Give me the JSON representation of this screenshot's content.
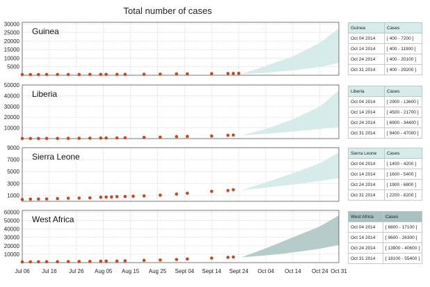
{
  "chart_data": {
    "type": "area",
    "title": "Total number of cases",
    "x_ticks": [
      "Jul 06",
      "Jul 16",
      "Jul 26",
      "Aug 05",
      "Aug 15",
      "Aug 25",
      "Sept 04",
      "Sept 14",
      "Sept 24",
      "Oct 04",
      "Oct 14",
      "Oct 24",
      "Oct 31"
    ],
    "panels": [
      {
        "name": "Guinea",
        "band_color": "#d6ecea",
        "header_color": "#d6ecea",
        "y_ticks": [
          5000,
          10000,
          15000,
          20000,
          25000,
          30000
        ],
        "y_tick_labels": [
          "5000",
          "10000",
          "15000",
          "20000",
          "25000",
          "30000"
        ],
        "ylim": [
          0,
          31000
        ],
        "projection": {
          "x": [
            "Sept 25",
            "Oct 04",
            "Oct 14",
            "Oct 24",
            "Oct 31"
          ],
          "low": [
            650,
            1500,
            2800,
            4800,
            7200
          ],
          "high": [
            650,
            5500,
            11000,
            19000,
            27500
          ]
        },
        "points": {
          "x": [
            "Jul 06",
            "Jul 09",
            "Jul 12",
            "Jul 15",
            "Jul 19",
            "Jul 23",
            "Jul 27",
            "Jul 31",
            "Aug 04",
            "Aug 06",
            "Aug 10",
            "Aug 13",
            "Aug 20",
            "Aug 26",
            "Sept 01",
            "Sept 05",
            "Sept 14",
            "Sept 20",
            "Sept 22",
            "Sept 24"
          ],
          "y": [
            410,
            415,
            427,
            430,
            438,
            445,
            460,
            472,
            485,
            495,
            506,
            519,
            579,
            648,
            771,
            812,
            936,
            1022,
            1074,
            1157
          ]
        },
        "table": {
          "header": [
            "Guinea",
            "Cases"
          ],
          "rows": [
            [
              "Oct 04 2014",
              "[ 400 - 7200 ]"
            ],
            [
              "Oct 14 2014",
              "[ 400 - 11900 ]"
            ],
            [
              "Oct 24 2014",
              "[ 400 - 20100 ]"
            ],
            [
              "Oct 31 2014",
              "[ 400 - 29200 ]"
            ]
          ]
        }
      },
      {
        "name": "Liberia",
        "band_color": "#d6ecea",
        "header_color": "#d6ecea",
        "y_ticks": [
          10000,
          20000,
          30000,
          40000,
          50000
        ],
        "y_tick_labels": [
          "10000",
          "20000",
          "30000",
          "40000",
          "50000"
        ],
        "ylim": [
          0,
          50000
        ],
        "projection": {
          "x": [
            "Sept 25",
            "Oct 04",
            "Oct 14",
            "Oct 24",
            "Oct 31"
          ],
          "low": [
            3000,
            4500,
            6500,
            9000,
            11000
          ],
          "high": [
            3000,
            9000,
            18000,
            30000,
            45000
          ]
        },
        "points": {
          "x": [
            "Jul 06",
            "Jul 09",
            "Jul 12",
            "Jul 15",
            "Jul 19",
            "Jul 23",
            "Jul 27",
            "Jul 31",
            "Aug 04",
            "Aug 06",
            "Aug 10",
            "Aug 13",
            "Aug 20",
            "Aug 26",
            "Sept 01",
            "Sept 05",
            "Sept 14",
            "Sept 20",
            "Sept 22"
          ],
          "y": [
            100,
            115,
            131,
            172,
            224,
            249,
            329,
            391,
            516,
            554,
            670,
            786,
            1082,
            1378,
            1871,
            2046,
            2407,
            3022,
            3280
          ]
        },
        "table": {
          "header": [
            "Liberia",
            "Cases"
          ],
          "rows": [
            [
              "Oct 04 2014",
              "[ 2900 - 13600 ]"
            ],
            [
              "Oct 14 2014",
              "[ 4500 - 21700 ]"
            ],
            [
              "Oct 24 2014",
              "[ 6900 - 34400 ]"
            ],
            [
              "Oct 31 2014",
              "[ 9400 - 47000 ]"
            ]
          ]
        }
      },
      {
        "name": "Sierra Leone",
        "band_color": "#d6ecea",
        "header_color": "#d6ecea",
        "y_ticks": [
          1000,
          3000,
          5000,
          7000,
          9000
        ],
        "y_tick_labels": [
          "1000",
          "3000",
          "5000",
          "7000",
          "9000"
        ],
        "ylim": [
          0,
          9000
        ],
        "projection": {
          "x": [
            "Sept 25",
            "Oct 04",
            "Oct 14",
            "Oct 24",
            "Oct 31"
          ],
          "low": [
            1850,
            2300,
            2800,
            3400,
            3900
          ],
          "high": [
            1850,
            3200,
            4700,
            6400,
            8200
          ]
        },
        "points": {
          "x": [
            "Jul 06",
            "Jul 09",
            "Jul 12",
            "Jul 15",
            "Jul 19",
            "Jul 23",
            "Jul 27",
            "Jul 31",
            "Aug 04",
            "Aug 06",
            "Aug 08",
            "Aug 10",
            "Aug 13",
            "Aug 16",
            "Aug 20",
            "Aug 26",
            "Sept 01",
            "Sept 05",
            "Sept 14",
            "Sept 20",
            "Sept 22"
          ],
          "y": [
            305,
            368,
            386,
            397,
            454,
            525,
            533,
            574,
            691,
            717,
            730,
            783,
            810,
            848,
            907,
            1026,
            1216,
            1361,
            1673,
            1813,
            1940
          ]
        },
        "table": {
          "header": [
            "Sierra Leone",
            "Cases"
          ],
          "rows": [
            [
              "Oct 04 2014",
              "[ 1400 - 4200 ]"
            ],
            [
              "Oct 14 2014",
              "[ 1600 - 5400 ]"
            ],
            [
              "Oct 24 2014",
              "[ 1900 - 6800 ]"
            ],
            [
              "Oct 31 2014",
              "[ 2200 - 8200 ]"
            ]
          ]
        }
      },
      {
        "name": "West Africa",
        "band_color": "#b6cccb",
        "header_color": "#a9c1c0",
        "y_ticks": [
          10000,
          20000,
          30000,
          40000,
          50000,
          60000
        ],
        "y_tick_labels": [
          "10000",
          "20000",
          "30000",
          "40000",
          "50000",
          "60000"
        ],
        "ylim": [
          0,
          62000
        ],
        "projection": {
          "x": [
            "Sept 25",
            "Oct 04",
            "Oct 14",
            "Oct 24",
            "Oct 31"
          ],
          "low": [
            6300,
            8500,
            12000,
            16500,
            21000
          ],
          "high": [
            6300,
            17000,
            30000,
            43000,
            56000
          ]
        },
        "points": {
          "x": [
            "Jul 06",
            "Jul 09",
            "Jul 12",
            "Jul 15",
            "Jul 19",
            "Jul 23",
            "Jul 27",
            "Jul 31",
            "Aug 04",
            "Aug 06",
            "Aug 10",
            "Aug 13",
            "Aug 20",
            "Aug 26",
            "Sept 01",
            "Sept 05",
            "Sept 14",
            "Sept 20",
            "Sept 22"
          ],
          "y": [
            844,
            888,
            964,
            1048,
            1093,
            1201,
            1323,
            1440,
            1711,
            1779,
            1848,
            2127,
            2615,
            3069,
            3685,
            4293,
            5347,
            6263,
            6574
          ]
        },
        "table": {
          "header": [
            "West Africa",
            "Cases"
          ],
          "rows": [
            [
              "Oct 04 2014",
              "[ 6800 - 17100 ]"
            ],
            [
              "Oct 14 2014",
              "[ 9600 - 26300 ]"
            ],
            [
              "Oct 24 2014",
              "[ 13900 - 40600 ]"
            ],
            [
              "Oct 31 2014",
              "[ 18100 - 55400 ]"
            ]
          ]
        }
      }
    ],
    "point_color": "#c8471e",
    "grid": true
  }
}
